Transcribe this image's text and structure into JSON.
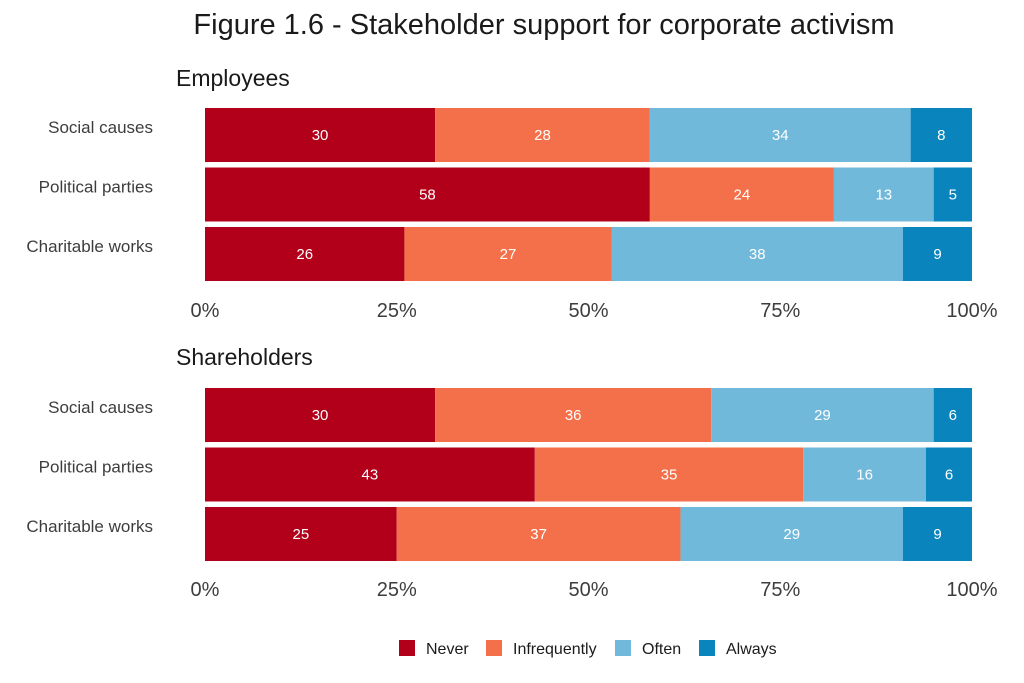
{
  "chart_data": {
    "type": "bar",
    "orientation": "horizontal",
    "stacked": true,
    "title": "Figure 1.6 - Stakeholder support for corporate activism",
    "categories": [
      "Social causes",
      "Political parties",
      "Charitable works"
    ],
    "series_names": [
      "Never",
      "Infrequently",
      "Often",
      "Always"
    ],
    "colors": [
      "#b2001a",
      "#f4704a",
      "#71b9da",
      "#0a84bd"
    ],
    "x_ticks": [
      "0%",
      "25%",
      "50%",
      "75%",
      "100%"
    ],
    "xlim": [
      0,
      100
    ],
    "legend_position": "bottom",
    "panels": [
      {
        "title": "Employees",
        "series": [
          {
            "name": "Never",
            "values": [
              30,
              58,
              26
            ]
          },
          {
            "name": "Infrequently",
            "values": [
              28,
              24,
              27
            ]
          },
          {
            "name": "Often",
            "values": [
              34,
              13,
              38
            ]
          },
          {
            "name": "Always",
            "values": [
              8,
              5,
              9
            ]
          }
        ]
      },
      {
        "title": "Shareholders",
        "series": [
          {
            "name": "Never",
            "values": [
              30,
              43,
              25
            ]
          },
          {
            "name": "Infrequently",
            "values": [
              36,
              35,
              37
            ]
          },
          {
            "name": "Often",
            "values": [
              29,
              16,
              29
            ]
          },
          {
            "name": "Always",
            "values": [
              6,
              6,
              9
            ]
          }
        ]
      }
    ]
  }
}
